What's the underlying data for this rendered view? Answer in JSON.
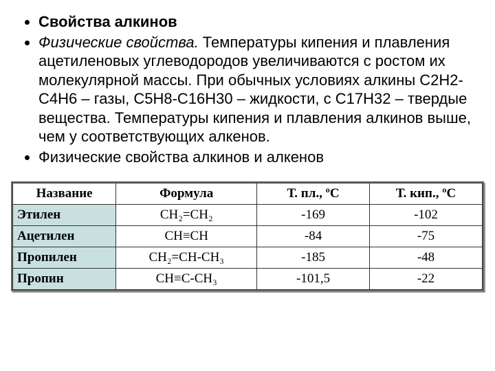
{
  "bullets": {
    "b1": "Свойства алкинов",
    "b2_prefix": "Физические свойства.",
    "b2_rest": " Температуры кипения и плавления ацетиленовых углеводородов увеличиваются с ростом их молекулярной массы. При обычных условиях алкины C2H2-C4H6 – газы, C5H8-C16H30 – жидкости, с C17H32 – твердые вещества. Температуры кипения и плавления алкинов выше, чем у соответствующих алкенов.",
    "b3": "Физические свойства алкинов и алкенов"
  },
  "table": {
    "headers": {
      "name": "Название",
      "formula": "Формула",
      "mp": "Т. пл., ºС",
      "bp": "Т. кип., ºС"
    },
    "rows": [
      {
        "name": "Этилен",
        "formula": "CH₂=CH₂",
        "mp": "-169",
        "bp": "-102"
      },
      {
        "name": "Ацетилен",
        "formula": "CH≡CH",
        "mp": "-84",
        "bp": "-75"
      },
      {
        "name": "Пропилен",
        "formula": "CH₂=CH-CH₃",
        "mp": "-185",
        "bp": "-48"
      },
      {
        "name": "Пропин",
        "formula": "CH≡C-CH₃",
        "mp": "-101,5",
        "bp": "-22"
      }
    ],
    "style": {
      "header_bg": "#ffffff",
      "name_col_bg": "#c8e0e0",
      "value_bg": "#ffffff",
      "border_color": "#333333",
      "outer_border_color": "#666666",
      "font_family": "Times New Roman",
      "font_size_pt": 14,
      "col_widths_pct": [
        22,
        30,
        24,
        24
      ]
    }
  },
  "page_style": {
    "body_font_family": "Arial",
    "bullet_font_size_pt": 17,
    "text_color": "#000000",
    "background_color": "#ffffff"
  }
}
